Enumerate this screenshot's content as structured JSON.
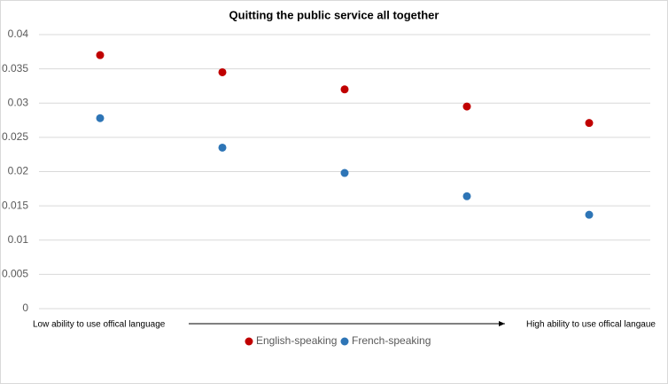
{
  "chart_data": {
    "type": "scatter",
    "title": "Quitting the public service all together",
    "categories": [
      null,
      null,
      null,
      null,
      null
    ],
    "series": [
      {
        "name": "English-speaking",
        "color": "#c00000",
        "values": [
          0.037,
          0.0345,
          0.032,
          0.0295,
          0.0271
        ]
      },
      {
        "name": "French-speaking",
        "color": "#2e75b6",
        "values": [
          0.0278,
          0.0235,
          0.0198,
          0.0164,
          0.0137
        ]
      }
    ],
    "annotations": [
      "Low ability to use offical language",
      "High ability to use offical langaue"
    ],
    "ylim": [
      0,
      0.04
    ],
    "yticks": [
      0,
      0.005,
      0.01,
      0.015,
      0.02,
      0.025,
      0.03,
      0.035,
      0.04
    ],
    "grid": true,
    "legend": "bottom"
  }
}
